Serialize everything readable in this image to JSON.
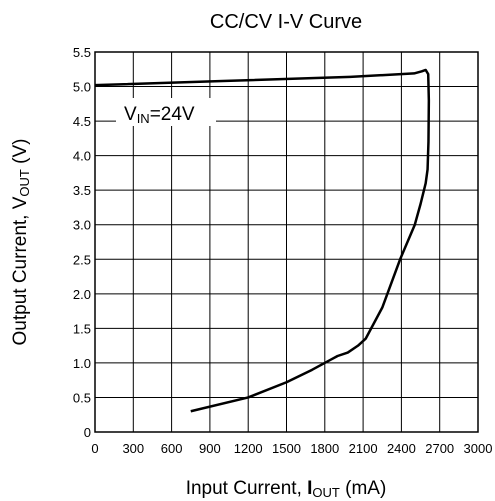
{
  "chart_data": {
    "type": "line",
    "title": "CC/CV I-V Curve",
    "x_label": {
      "main": "Input Current, ",
      "symbol": "I",
      "sub": "OUT",
      "unit": " (mA)"
    },
    "y_label": {
      "main": "Output Current, V",
      "sub": "OUT",
      "unit": " (V)"
    },
    "annotation": {
      "main": "V",
      "sub": "IN",
      "rest": "=24V"
    },
    "series": [
      {
        "name": "VIN=24V",
        "color": "#000000",
        "x": [
          0,
          1000,
          2000,
          2500,
          2560,
          2590,
          2610,
          2615,
          2612,
          2605,
          2590,
          2550,
          2505,
          2390,
          2250,
          2120,
          2060,
          1980,
          1900,
          1850,
          1700,
          1500,
          1200,
          750
        ],
        "values": [
          5.02,
          5.08,
          5.14,
          5.19,
          5.22,
          5.24,
          5.18,
          4.8,
          4.2,
          3.8,
          3.6,
          3.3,
          3.0,
          2.5,
          1.8,
          1.35,
          1.25,
          1.15,
          1.1,
          1.05,
          0.9,
          0.72,
          0.5,
          0.3
        ]
      }
    ],
    "xlim": [
      0,
      3000
    ],
    "xticks": [
      0,
      300,
      600,
      900,
      1200,
      1500,
      1800,
      2100,
      2400,
      2700,
      3000
    ],
    "ylim": [
      0,
      5.5
    ],
    "yticks": [
      0,
      0.5,
      {
        "value": 1,
        "label": "1.0"
      },
      1.5,
      {
        "value": 2,
        "label": "2.0"
      },
      2.5,
      {
        "value": 3,
        "label": "3.0"
      },
      3.5,
      {
        "value": 4,
        "label": "4.0"
      },
      4.5,
      {
        "value": 5,
        "label": "5.0"
      },
      5.5
    ],
    "grid": true
  }
}
